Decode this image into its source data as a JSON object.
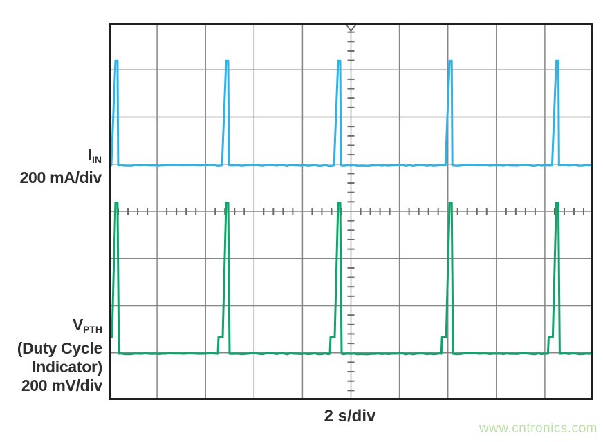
{
  "labels": {
    "iin": {
      "symbol": "I",
      "subscript": "IN",
      "scale": "200 mA/div"
    },
    "vpth": {
      "symbol": "V",
      "subscript": "PTH",
      "note1": "(Duty Cycle",
      "note2": "Indicator)",
      "scale": "200 mV/div"
    }
  },
  "x_axis_label": "2 s/div",
  "watermark": {
    "text": "www.cntronics.com",
    "color": "#bbdfa9"
  },
  "chart_data": {
    "type": "line",
    "subtype": "oscilloscope",
    "title": "",
    "xlabel": "2 s/div",
    "grid": {
      "x_divisions": 10,
      "y_divisions": 8,
      "minor_ticks_per_division": 5,
      "grid_on": true,
      "center_axes_ticked": true
    },
    "time_per_division_s": 2,
    "total_time_s": 20,
    "trigger_marker": {
      "x_div": 5,
      "position": "top"
    },
    "colors": {
      "grid": "#868686",
      "border": "#1f1f1f",
      "tick": "#6a6a6a",
      "text": "#2e2e2e"
    },
    "series": [
      {
        "name": "IIN",
        "units_per_division": "200 mA",
        "color": "#2fb3e6",
        "baseline_div_from_top": 3.03,
        "peak_div_from_top": 0.81,
        "pulse_height_divisions": 2.22,
        "pulse_height_mA": 444,
        "pulse_times_s": [
          0.31,
          4.88,
          9.5,
          14.1,
          18.5
        ],
        "pulse_period_s": 4.6,
        "has_pre_step": false
      },
      {
        "name": "VPTH (Duty Cycle Indicator)",
        "units_per_division": "200 mV",
        "color": "#0fa46b",
        "baseline_div_from_top": 7.02,
        "peak_div_from_top": 3.82,
        "pre_step_div_from_top": 6.67,
        "pulse_height_divisions": 3.2,
        "pulse_height_mV": 640,
        "pre_step_height_mV": 70,
        "pulse_times_s": [
          0.31,
          4.88,
          9.5,
          14.1,
          18.5
        ],
        "pulse_period_s": 4.6,
        "has_pre_step": true
      }
    ]
  }
}
